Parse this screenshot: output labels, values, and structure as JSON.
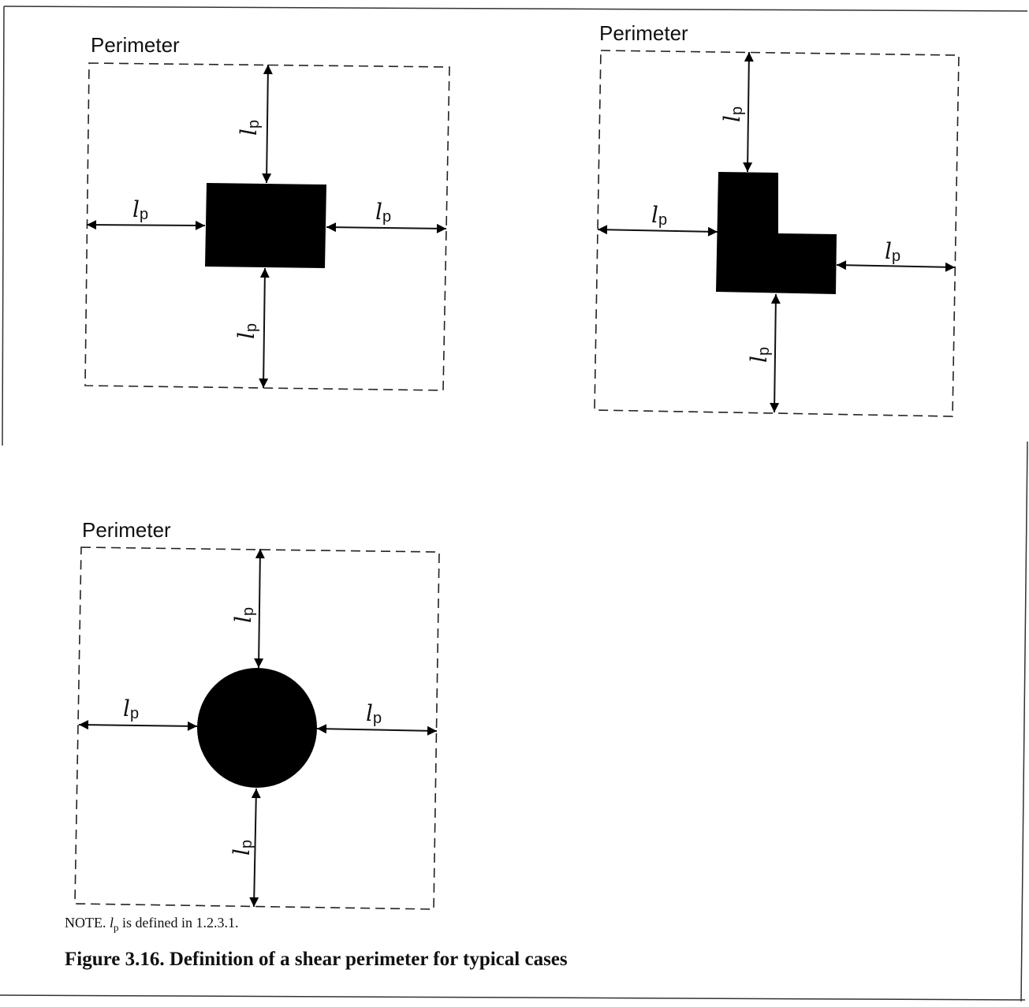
{
  "figure": {
    "panels": [
      {
        "id": "square",
        "perimeter_label": "Perimeter",
        "dimension_symbol": "l",
        "dimension_subscript": "p"
      },
      {
        "id": "l-shape",
        "perimeter_label": "Perimeter",
        "dimension_symbol": "l",
        "dimension_subscript": "p"
      },
      {
        "id": "circle",
        "perimeter_label": "Perimeter",
        "dimension_symbol": "l",
        "dimension_subscript": "p"
      }
    ],
    "note": {
      "prefix": "NOTE.",
      "symbol": "l",
      "subscript": "p",
      "suffix": "is defined in 1.2.3.1."
    },
    "caption": "Figure 3.16. Definition of a shear perimeter for typical cases"
  }
}
